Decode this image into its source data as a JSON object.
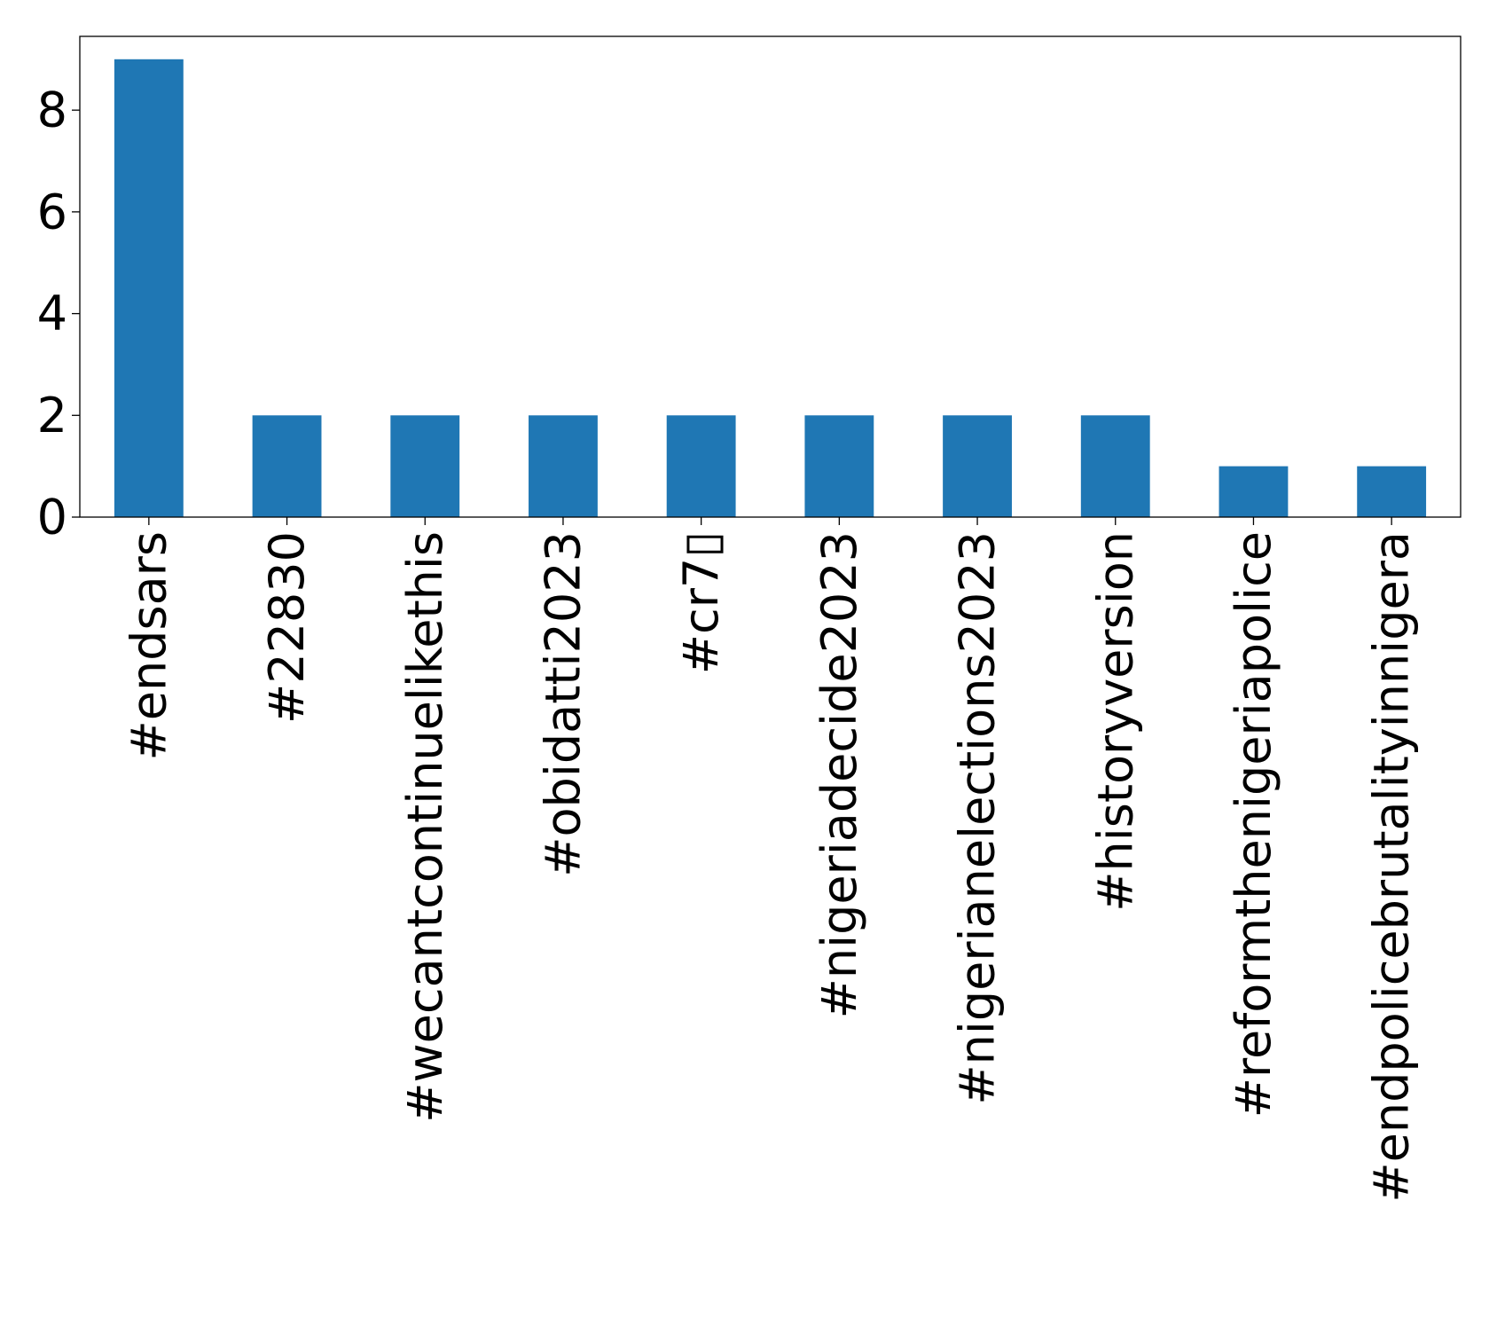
{
  "chart_data": {
    "type": "bar",
    "categories": [
      "#endsars",
      "#22830",
      "#wecantcontinuelikethis",
      "#obidatti2023",
      "#cr7▯",
      "#nigeriadecide2023",
      "#nigerianelections2023",
      "#historyversion",
      "#reformthenigeriapolice",
      "#endpolicebrutalityinnigera"
    ],
    "values": [
      9,
      2,
      2,
      2,
      2,
      2,
      2,
      2,
      1,
      1
    ],
    "yticks": [
      0,
      2,
      4,
      6,
      8
    ],
    "ylim": [
      0,
      9.45
    ],
    "title": "",
    "xlabel": "",
    "ylabel": "",
    "grid": false,
    "bar_color": "#1f77b4"
  }
}
